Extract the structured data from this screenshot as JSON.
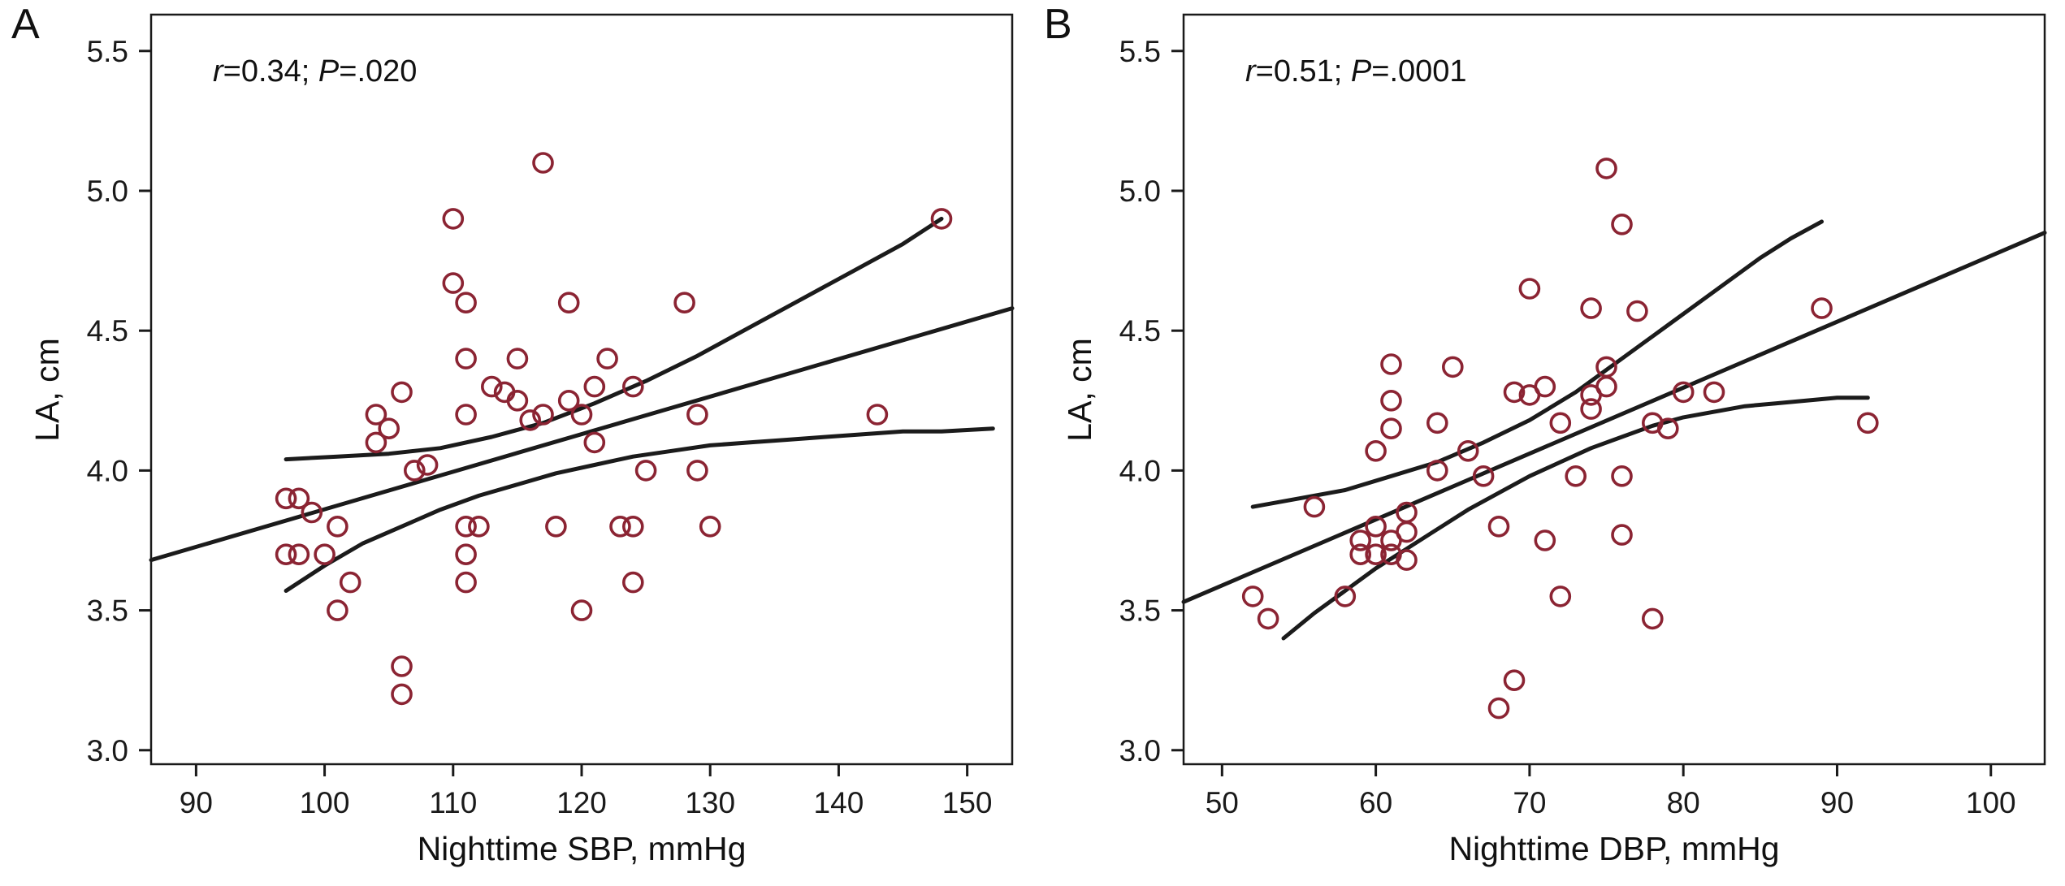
{
  "colors": {
    "marker": "#8b2433",
    "line": "#1b1b1b",
    "frame": "#1a1a1a",
    "text": "#1a1a1a",
    "background": "#ffffff"
  },
  "chart_data": [
    {
      "type": "scatter",
      "panel_label": "A",
      "annotation": {
        "r_label": "r",
        "r_value": "=0.34; ",
        "p_label": "P",
        "p_value": "=.020"
      },
      "xlabel": "Nighttime SBP, mmHg",
      "ylabel": "LA, cm",
      "xlim": [
        86.5,
        153.5
      ],
      "ylim": [
        2.95,
        5.63
      ],
      "xticks": [
        90,
        100,
        110,
        120,
        130,
        140,
        150
      ],
      "yticks": [
        3.0,
        3.5,
        4.0,
        4.5,
        5.0,
        5.5
      ],
      "grid": false,
      "legend": "none",
      "points": [
        [
          97,
          3.9
        ],
        [
          98,
          3.9
        ],
        [
          97,
          3.7
        ],
        [
          98,
          3.7
        ],
        [
          99,
          3.85
        ],
        [
          100,
          3.7
        ],
        [
          101,
          3.5
        ],
        [
          101,
          3.8
        ],
        [
          102,
          3.6
        ],
        [
          104,
          4.1
        ],
        [
          104,
          4.2
        ],
        [
          105,
          4.15
        ],
        [
          106,
          3.2
        ],
        [
          106,
          3.3
        ],
        [
          106,
          4.28
        ],
        [
          107,
          4.0
        ],
        [
          108,
          4.02
        ],
        [
          110,
          4.9
        ],
        [
          110,
          4.67
        ],
        [
          111,
          4.6
        ],
        [
          111,
          4.4
        ],
        [
          111,
          4.2
        ],
        [
          111,
          3.8
        ],
        [
          111,
          3.7
        ],
        [
          111,
          3.6
        ],
        [
          112,
          3.8
        ],
        [
          113,
          4.3
        ],
        [
          114,
          4.28
        ],
        [
          115,
          4.4
        ],
        [
          115,
          4.25
        ],
        [
          116,
          4.18
        ],
        [
          117,
          5.1
        ],
        [
          117,
          4.2
        ],
        [
          118,
          3.8
        ],
        [
          119,
          4.6
        ],
        [
          119,
          4.25
        ],
        [
          120,
          3.5
        ],
        [
          120,
          4.2
        ],
        [
          121,
          4.1
        ],
        [
          121,
          4.3
        ],
        [
          122,
          4.4
        ],
        [
          123,
          3.8
        ],
        [
          124,
          3.8
        ],
        [
          124,
          4.3
        ],
        [
          124,
          3.6
        ],
        [
          125,
          4.0
        ],
        [
          128,
          4.6
        ],
        [
          129,
          4.0
        ],
        [
          129,
          4.2
        ],
        [
          130,
          3.8
        ],
        [
          143,
          4.2
        ],
        [
          148,
          4.9
        ]
      ],
      "lines": [
        {
          "name": "upper-confidence-band",
          "points": [
            [
              97,
              4.04
            ],
            [
              101,
              4.05
            ],
            [
              105,
              4.06
            ],
            [
              109,
              4.08
            ],
            [
              113,
              4.12
            ],
            [
              117,
              4.17
            ],
            [
              121,
              4.24
            ],
            [
              125,
              4.32
            ],
            [
              129,
              4.41
            ],
            [
              133,
              4.51
            ],
            [
              137,
              4.61
            ],
            [
              141,
              4.71
            ],
            [
              145,
              4.81
            ],
            [
              148,
              4.9
            ]
          ]
        },
        {
          "name": "regression-line",
          "points": [
            [
              86.5,
              3.68
            ],
            [
              153.5,
              4.58
            ]
          ]
        },
        {
          "name": "lower-confidence-band",
          "points": [
            [
              97,
              3.57
            ],
            [
              100,
              3.66
            ],
            [
              103,
              3.74
            ],
            [
              106,
              3.8
            ],
            [
              109,
              3.86
            ],
            [
              112,
              3.91
            ],
            [
              115,
              3.95
            ],
            [
              118,
              3.99
            ],
            [
              121,
              4.02
            ],
            [
              124,
              4.05
            ],
            [
              127,
              4.07
            ],
            [
              130,
              4.09
            ],
            [
              133,
              4.1
            ],
            [
              136,
              4.11
            ],
            [
              139,
              4.12
            ],
            [
              142,
              4.13
            ],
            [
              145,
              4.14
            ],
            [
              148,
              4.14
            ],
            [
              152,
              4.15
            ]
          ]
        }
      ]
    },
    {
      "type": "scatter",
      "panel_label": "B",
      "annotation": {
        "r_label": "r",
        "r_value": "=0.51; ",
        "p_label": "P",
        "p_value": "=.0001"
      },
      "xlabel": "Nighttime DBP, mmHg",
      "ylabel": "LA, cm",
      "xlim": [
        47.5,
        103.5
      ],
      "ylim": [
        2.95,
        5.63
      ],
      "xticks": [
        50,
        60,
        70,
        80,
        90,
        100
      ],
      "yticks": [
        3.0,
        3.5,
        4.0,
        4.5,
        5.0,
        5.5
      ],
      "grid": false,
      "legend": "none",
      "points": [
        [
          52,
          3.55
        ],
        [
          53,
          3.47
        ],
        [
          56,
          3.87
        ],
        [
          58,
          3.55
        ],
        [
          59,
          3.7
        ],
        [
          59,
          3.75
        ],
        [
          60,
          4.07
        ],
        [
          60,
          3.8
        ],
        [
          60,
          3.7
        ],
        [
          61,
          4.38
        ],
        [
          61,
          4.25
        ],
        [
          61,
          4.15
        ],
        [
          61,
          3.75
        ],
        [
          61,
          3.7
        ],
        [
          62,
          3.85
        ],
        [
          62,
          3.78
        ],
        [
          62,
          3.68
        ],
        [
          64,
          4.17
        ],
        [
          64,
          4.0
        ],
        [
          65,
          4.37
        ],
        [
          66,
          4.07
        ],
        [
          67,
          3.98
        ],
        [
          68,
          3.15
        ],
        [
          69,
          3.25
        ],
        [
          68,
          3.8
        ],
        [
          69,
          4.28
        ],
        [
          70,
          4.27
        ],
        [
          70,
          4.65
        ],
        [
          71,
          3.75
        ],
        [
          71,
          4.3
        ],
        [
          72,
          3.55
        ],
        [
          72,
          4.17
        ],
        [
          73,
          3.98
        ],
        [
          74,
          4.58
        ],
        [
          74,
          4.27
        ],
        [
          74,
          4.22
        ],
        [
          75,
          5.08
        ],
        [
          75,
          4.37
        ],
        [
          75,
          4.3
        ],
        [
          76,
          3.98
        ],
        [
          76,
          3.77
        ],
        [
          76,
          4.88
        ],
        [
          77,
          4.57
        ],
        [
          78,
          4.17
        ],
        [
          78,
          3.47
        ],
        [
          79,
          4.15
        ],
        [
          80,
          4.28
        ],
        [
          82,
          4.28
        ],
        [
          89,
          4.58
        ],
        [
          92,
          4.17
        ]
      ],
      "lines": [
        {
          "name": "upper-confidence-band",
          "points": [
            [
              52,
              3.87
            ],
            [
              55,
              3.9
            ],
            [
              58,
              3.93
            ],
            [
              61,
              3.98
            ],
            [
              64,
              4.03
            ],
            [
              67,
              4.1
            ],
            [
              70,
              4.18
            ],
            [
              73,
              4.28
            ],
            [
              76,
              4.4
            ],
            [
              79,
              4.52
            ],
            [
              82,
              4.64
            ],
            [
              85,
              4.76
            ],
            [
              87,
              4.83
            ],
            [
              89,
              4.89
            ]
          ]
        },
        {
          "name": "regression-line",
          "points": [
            [
              47.5,
              3.53
            ],
            [
              103.5,
              4.85
            ]
          ]
        },
        {
          "name": "lower-confidence-band",
          "points": [
            [
              54,
              3.4
            ],
            [
              56,
              3.49
            ],
            [
              58,
              3.57
            ],
            [
              60,
              3.65
            ],
            [
              62,
              3.72
            ],
            [
              64,
              3.79
            ],
            [
              66,
              3.86
            ],
            [
              68,
              3.92
            ],
            [
              70,
              3.98
            ],
            [
              72,
              4.03
            ],
            [
              74,
              4.08
            ],
            [
              76,
              4.12
            ],
            [
              78,
              4.16
            ],
            [
              80,
              4.19
            ],
            [
              82,
              4.21
            ],
            [
              84,
              4.23
            ],
            [
              86,
              4.24
            ],
            [
              88,
              4.25
            ],
            [
              90,
              4.26
            ],
            [
              92,
              4.26
            ]
          ]
        }
      ]
    }
  ]
}
